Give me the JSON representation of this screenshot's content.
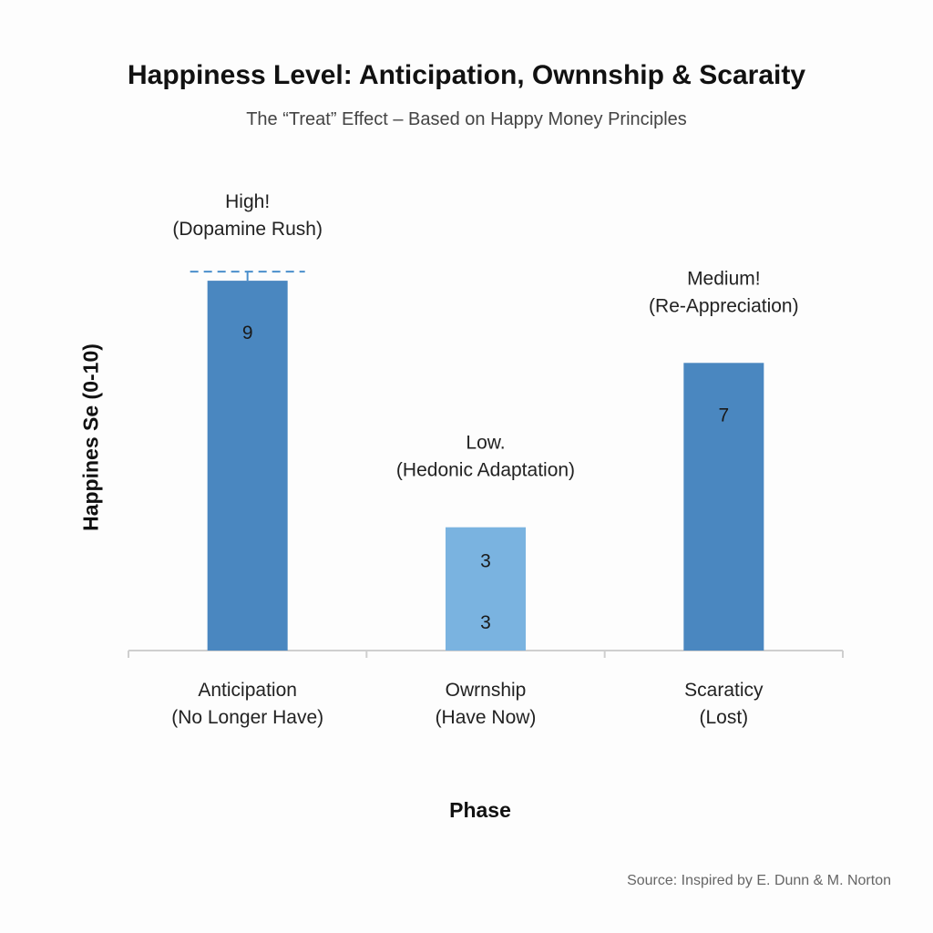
{
  "chart_data": {
    "type": "bar",
    "title": "Happiness Level: Anticipation, Ownnship & Scaraity",
    "subtitle": "The “Treat” Effect – Based on Happy Money Principles",
    "xlabel": "Phase",
    "ylabel": "Happines Se (0-10)",
    "ylim": [
      0,
      10
    ],
    "grid": false,
    "categories": [
      {
        "line1": "Anticipation",
        "line2": "(No Longer Have)"
      },
      {
        "line1": "Owrnship",
        "line2": "(Have Now)"
      },
      {
        "line1": "Scaraticy",
        "line2": "(Lost)"
      }
    ],
    "values": [
      9,
      3,
      7
    ],
    "value_labels": [
      [
        "9"
      ],
      [
        "3",
        "3"
      ],
      [
        "7"
      ]
    ],
    "annotations": [
      {
        "line1": "High!",
        "line2": "(Dopamine Rush)"
      },
      {
        "line1": "Low.",
        "line2": "(Hedonic Adaptation)"
      },
      {
        "line1": "Medium!",
        "line2": "(Re-Appreciation)"
      }
    ],
    "colors": [
      "#4a87c0",
      "#7ab3e0",
      "#4a87c0"
    ],
    "reference_line_color": "#4a8fcc",
    "source": "Source: Inspired by E. Dunn & M. Norton"
  }
}
